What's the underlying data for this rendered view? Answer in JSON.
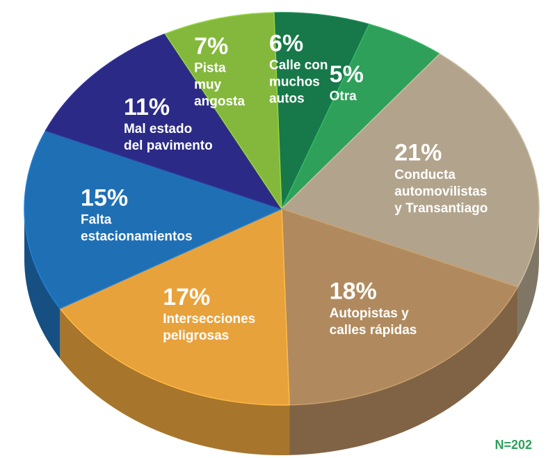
{
  "chart_data": {
    "type": "pie",
    "categories": [
      [
        "Calle con",
        "muchos",
        "autos"
      ],
      [
        "Otra"
      ],
      [
        "Conducta",
        "automovilistas",
        "y Transantiago"
      ],
      [
        "Autopistas y",
        "calles rápidas"
      ],
      [
        "Intersecciones",
        "peligrosas"
      ],
      [
        "Falta",
        "estacionamientos"
      ],
      [
        "Mal estado",
        "del pavimento"
      ],
      [
        "Pista",
        "muy",
        "angosta"
      ]
    ],
    "values": [
      6,
      5,
      21,
      18,
      17,
      15,
      11,
      7
    ],
    "value_labels": [
      "6%",
      "5%",
      "21%",
      "18%",
      "17%",
      "15%",
      "11%",
      "7%"
    ],
    "colors": [
      "#17784a",
      "#2ea05a",
      "#b2a48c",
      "#b08a5e",
      "#e8a23c",
      "#1f6fb5",
      "#2b2a86",
      "#84b83c"
    ],
    "annotation": "N=202"
  }
}
